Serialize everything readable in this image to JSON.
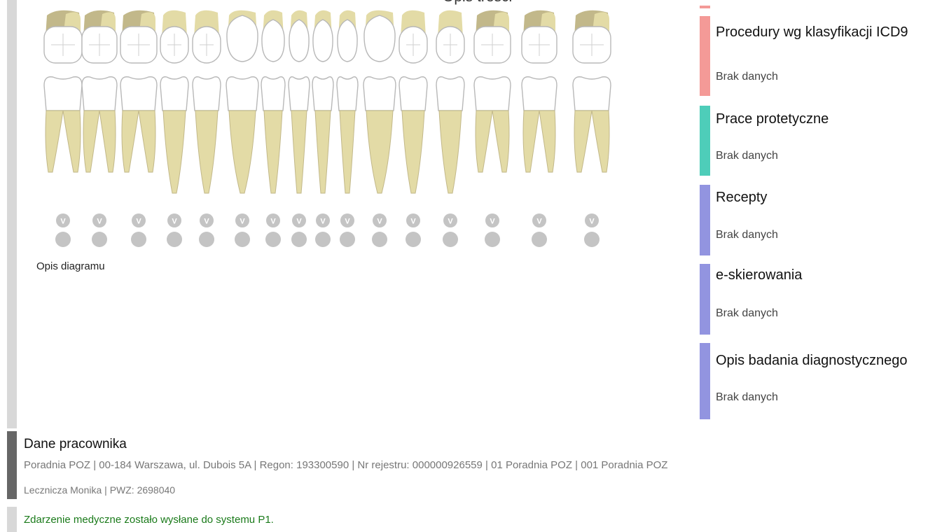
{
  "header": {
    "title": "Opis treści"
  },
  "diagram": {
    "label": "Opis diagramu",
    "tooth_count": 16,
    "marker_letter": "V",
    "colors": {
      "root": "#e3dba6",
      "root_dark": "#c2b88a",
      "crown": "#ffffff",
      "outline": "#b8b8b8",
      "marker": "#c4c4c4"
    }
  },
  "sidebar": {
    "sections": [
      {
        "title": "Procedury wg klasyfikacji ICD9",
        "value": "Brak danych",
        "color": "#f49a97"
      },
      {
        "title": "Prace protetyczne",
        "value": "Brak danych",
        "color": "#4ecdb9"
      },
      {
        "title": "Recepty",
        "value": "Brak danych",
        "color": "#9294e0"
      },
      {
        "title": "e-skierowania",
        "value": "Brak danych",
        "color": "#9294e0"
      },
      {
        "title": "Opis badania diagnostycznego",
        "value": "Brak danych",
        "color": "#9294e0"
      }
    ]
  },
  "employee": {
    "title": "Dane pracownika",
    "details": "Poradnia POZ | 00-184 Warszawa, ul. Dubois 5A | Regon: 193300590 | Nr rejestru: 000000926559 | 01 Poradnia POZ | 001 Poradnia POZ",
    "name_pwz": "Lecznicza Monika | PWZ: 2698040"
  },
  "status": {
    "message": "Zdarzenie medyczne zostało wysłane do systemu P1.",
    "color": "#1a7a1a"
  }
}
